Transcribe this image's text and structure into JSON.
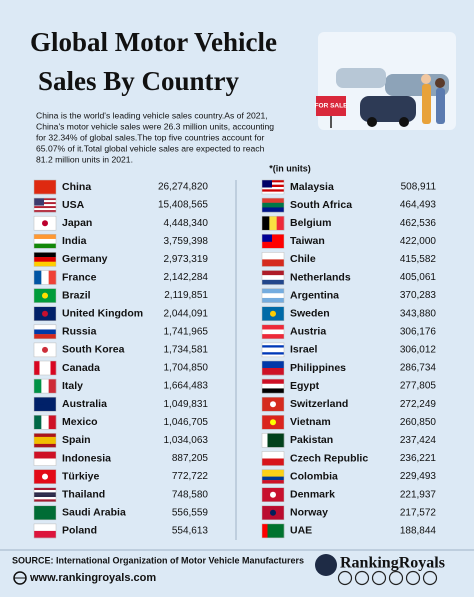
{
  "header": {
    "title_line1": "Global Motor Vehicle",
    "title_line2": "Sales By Country"
  },
  "intro": {
    "lines": [
      "China is the world's leading vehicle sales country.As of 2021,",
      "China's motor vehicle sales were 26.3 million units, accounting",
      "for 32.34% of global sales.The top five countries account for",
      "65.07% of it.Total global vehicle sales are expected to reach",
      "81.2 million units in 2021."
    ]
  },
  "unit_note": "*(in units)",
  "illustration": {
    "sign": "FOR SALE"
  },
  "table": {
    "left": [
      {
        "country": "China",
        "value": "26,274,820"
      },
      {
        "country": "USA",
        "value": "15,408,565"
      },
      {
        "country": "Japan",
        "value": "4,448,340"
      },
      {
        "country": "India",
        "value": "3,759,398"
      },
      {
        "country": "Germany",
        "value": "2,973,319"
      },
      {
        "country": "France",
        "value": "2,142,284"
      },
      {
        "country": "Brazil",
        "value": "2,119,851"
      },
      {
        "country": "United Kingdom",
        "value": "2,044,091"
      },
      {
        "country": "Russia",
        "value": "1,741,965"
      },
      {
        "country": "South Korea",
        "value": "1,734,581"
      },
      {
        "country": "Canada",
        "value": "1,704,850"
      },
      {
        "country": "Italy",
        "value": "1,664,483"
      },
      {
        "country": "Australia",
        "value": "1,049,831"
      },
      {
        "country": "Mexico",
        "value": "1,046,705"
      },
      {
        "country": "Spain",
        "value": "1,034,063"
      },
      {
        "country": "Indonesia",
        "value": "887,205"
      },
      {
        "country": "Türkiye",
        "value": "772,722"
      },
      {
        "country": "Thailand",
        "value": "748,580"
      },
      {
        "country": "Saudi Arabia",
        "value": "556,559"
      },
      {
        "country": "Poland",
        "value": "554,613"
      }
    ],
    "right": [
      {
        "country": "Malaysia",
        "value": "508,911"
      },
      {
        "country": "South Africa",
        "value": "464,493"
      },
      {
        "country": "Belgium",
        "value": "462,536"
      },
      {
        "country": "Taiwan",
        "value": "422,000"
      },
      {
        "country": "Chile",
        "value": "415,582"
      },
      {
        "country": "Netherlands",
        "value": "405,061"
      },
      {
        "country": "Argentina",
        "value": "370,283"
      },
      {
        "country": "Sweden",
        "value": "343,880"
      },
      {
        "country": "Austria",
        "value": "306,176"
      },
      {
        "country": "Israel",
        "value": "306,012"
      },
      {
        "country": "Philippines",
        "value": "286,734"
      },
      {
        "country": "Egypt",
        "value": "277,805"
      },
      {
        "country": "Switzerland",
        "value": "272,249"
      },
      {
        "country": "Vietnam",
        "value": "260,850"
      },
      {
        "country": "Pakistan",
        "value": "237,424"
      },
      {
        "country": "Czech Republic",
        "value": "236,221"
      },
      {
        "country": "Colombia",
        "value": "229,493"
      },
      {
        "country": "Denmark",
        "value": "221,937"
      },
      {
        "country": "Norway",
        "value": "217,572"
      },
      {
        "country": "UAE",
        "value": "188,844"
      }
    ]
  },
  "footer": {
    "source": "SOURCE: International Organization of Motor Vehicle Manufacturers",
    "website": "www.rankingroyals.com",
    "brand": "RankingRoyals"
  }
}
